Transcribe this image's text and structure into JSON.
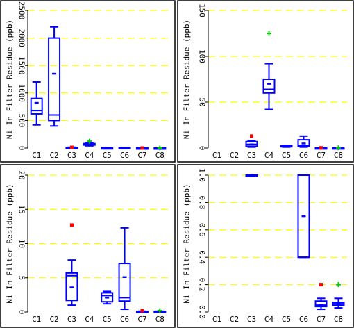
{
  "colors": {
    "box": "#0000ff",
    "grid": "#ffff00",
    "outlier_red": "#ff0000",
    "outlier_green": "#00cc00"
  },
  "chart_data": [
    {
      "type": "box",
      "ylabel": "Ni In Filter Residue (ppb)",
      "categories": [
        "C1",
        "C2",
        "C3",
        "C4",
        "C5",
        "C6",
        "C7",
        "C8"
      ],
      "yticks": [
        "0",
        "500",
        "1000",
        "1500",
        "2000",
        "2500"
      ],
      "ylim": [
        0,
        2500
      ],
      "grid": true,
      "boxes": [
        {
          "cat": "C1",
          "whisker_low": 420,
          "q1": 620,
          "median": 680,
          "q3": 900,
          "whisker_high": 1200,
          "mean": 820
        },
        {
          "cat": "C2",
          "whisker_low": 400,
          "q1": 500,
          "median": 600,
          "q3": 2000,
          "whisker_high": 2200,
          "mean": 1350
        },
        {
          "cat": "C3",
          "whisker_low": 0,
          "q1": 0,
          "median": 5,
          "q3": 10,
          "whisker_high": 15,
          "mean": 5
        },
        {
          "cat": "C4",
          "whisker_low": 40,
          "q1": 55,
          "median": 65,
          "q3": 80,
          "whisker_high": 95,
          "mean": 70
        },
        {
          "cat": "C5",
          "whisker_low": 0,
          "q1": 0,
          "median": 2,
          "q3": 3,
          "whisker_high": 5,
          "mean": 2
        },
        {
          "cat": "C6",
          "whisker_low": 0,
          "q1": 1,
          "median": 2,
          "q3": 6,
          "whisker_high": 10,
          "mean": 4
        },
        {
          "cat": "C7",
          "whisker_low": 0,
          "q1": 0,
          "median": 0,
          "q3": 0.1,
          "whisker_high": 0.1,
          "mean": 0
        },
        {
          "cat": "C8",
          "whisker_low": 0,
          "q1": 0,
          "median": 0,
          "q3": 0.1,
          "whisker_high": 0.1,
          "mean": 0
        }
      ],
      "outliers": [
        {
          "cat": "C3",
          "value": 12,
          "color": "red"
        },
        {
          "cat": "C4",
          "value": 125,
          "color": "green"
        },
        {
          "cat": "C7",
          "value": 0.2,
          "color": "red"
        },
        {
          "cat": "C8",
          "value": 0.2,
          "color": "green"
        }
      ]
    },
    {
      "type": "box",
      "ylabel": "Ni In Filter Residue (ppb)",
      "categories": [
        "C1",
        "C2",
        "C3",
        "C4",
        "C5",
        "C6",
        "C7",
        "C8"
      ],
      "yticks": [
        "0",
        "50",
        "100",
        "150"
      ],
      "ylim": [
        0,
        150
      ],
      "grid": true,
      "boxes": [
        {
          "cat": "C3",
          "whisker_low": 1,
          "q1": 2,
          "median": 4,
          "q3": 7,
          "whisker_high": 8,
          "mean": 4
        },
        {
          "cat": "C4",
          "whisker_low": 42,
          "q1": 60,
          "median": 64,
          "q3": 75,
          "whisker_high": 92,
          "mean": 70
        },
        {
          "cat": "C5",
          "whisker_low": 1,
          "q1": 1.5,
          "median": 2,
          "q3": 2.5,
          "whisker_high": 3,
          "mean": 2
        },
        {
          "cat": "C6",
          "whisker_low": 1,
          "q1": 2,
          "median": 3,
          "q3": 9,
          "whisker_high": 13,
          "mean": 5
        },
        {
          "cat": "C7",
          "whisker_low": 0,
          "q1": 0,
          "median": 0,
          "q3": 0.1,
          "whisker_high": 0.1,
          "mean": 0
        },
        {
          "cat": "C8",
          "whisker_low": 0,
          "q1": 0,
          "median": 0,
          "q3": 0.1,
          "whisker_high": 0.1,
          "mean": 0
        }
      ],
      "outliers": [
        {
          "cat": "C3",
          "value": 13,
          "color": "red"
        },
        {
          "cat": "C4",
          "value": 125,
          "color": "green"
        },
        {
          "cat": "C7",
          "value": 0.2,
          "color": "red"
        },
        {
          "cat": "C8",
          "value": 0.2,
          "color": "green"
        }
      ]
    },
    {
      "type": "box",
      "ylabel": "Ni In Filter Residue (ppb)",
      "categories": [
        "C1",
        "C2",
        "C3",
        "C4",
        "C5",
        "C6",
        "C7",
        "C8"
      ],
      "yticks": [
        "0",
        "5",
        "10",
        "15",
        "20"
      ],
      "ylim": [
        0,
        20
      ],
      "grid": true,
      "boxes": [
        {
          "cat": "C3",
          "whisker_low": 1,
          "q1": 1.7,
          "median": 5.3,
          "q3": 5.7,
          "whisker_high": 7.6,
          "mean": 3.6
        },
        {
          "cat": "C5",
          "whisker_low": 1.2,
          "q1": 1.5,
          "median": 2.4,
          "q3": 2.8,
          "whisker_high": 3.0,
          "mean": 2.1
        },
        {
          "cat": "C6",
          "whisker_low": 0.4,
          "q1": 1.6,
          "median": 2.1,
          "q3": 7.1,
          "whisker_high": 12.3,
          "mean": 5.1
        },
        {
          "cat": "C7",
          "whisker_low": 0,
          "q1": 0.05,
          "median": 0.08,
          "q3": 0.1,
          "whisker_high": 0.12,
          "mean": 0.07
        },
        {
          "cat": "C8",
          "whisker_low": 0,
          "q1": 0.05,
          "median": 0.07,
          "q3": 0.1,
          "whisker_high": 0.12,
          "mean": 0.06
        }
      ],
      "outliers": [
        {
          "cat": "C3",
          "value": 12.7,
          "color": "red"
        },
        {
          "cat": "C7",
          "value": 0.2,
          "color": "red"
        },
        {
          "cat": "C8",
          "value": 0.2,
          "color": "green"
        }
      ]
    },
    {
      "type": "box",
      "ylabel": "Ni In Filter Residue (ppb)",
      "categories": [
        "C1",
        "C2",
        "C3",
        "C4",
        "C5",
        "C6",
        "C7",
        "C8"
      ],
      "yticks": [
        "0.0",
        "0.2",
        "0.4",
        "0.6",
        "0.8",
        "1.0"
      ],
      "ylim": [
        0,
        1
      ],
      "grid": true,
      "boxes": [
        {
          "cat": "C3",
          "whisker_low": 1.0,
          "q1": 1.0,
          "median": 1.0,
          "q3": 1.0,
          "whisker_high": 1.0,
          "mean": 1.0
        },
        {
          "cat": "C6",
          "whisker_low": 0.4,
          "q1": 0.4,
          "median": 0.4,
          "q3": 1.0,
          "whisker_high": 1.0,
          "mean": 0.7
        },
        {
          "cat": "C7",
          "whisker_low": 0.02,
          "q1": 0.04,
          "median": 0.05,
          "q3": 0.08,
          "whisker_high": 0.1,
          "mean": 0.05
        },
        {
          "cat": "C8",
          "whisker_low": 0.03,
          "q1": 0.05,
          "median": 0.06,
          "q3": 0.07,
          "whisker_high": 0.1,
          "mean": 0.06
        }
      ],
      "outliers": [
        {
          "cat": "C7",
          "value": 0.2,
          "color": "red"
        },
        {
          "cat": "C8",
          "value": 0.2,
          "color": "green"
        }
      ]
    }
  ]
}
